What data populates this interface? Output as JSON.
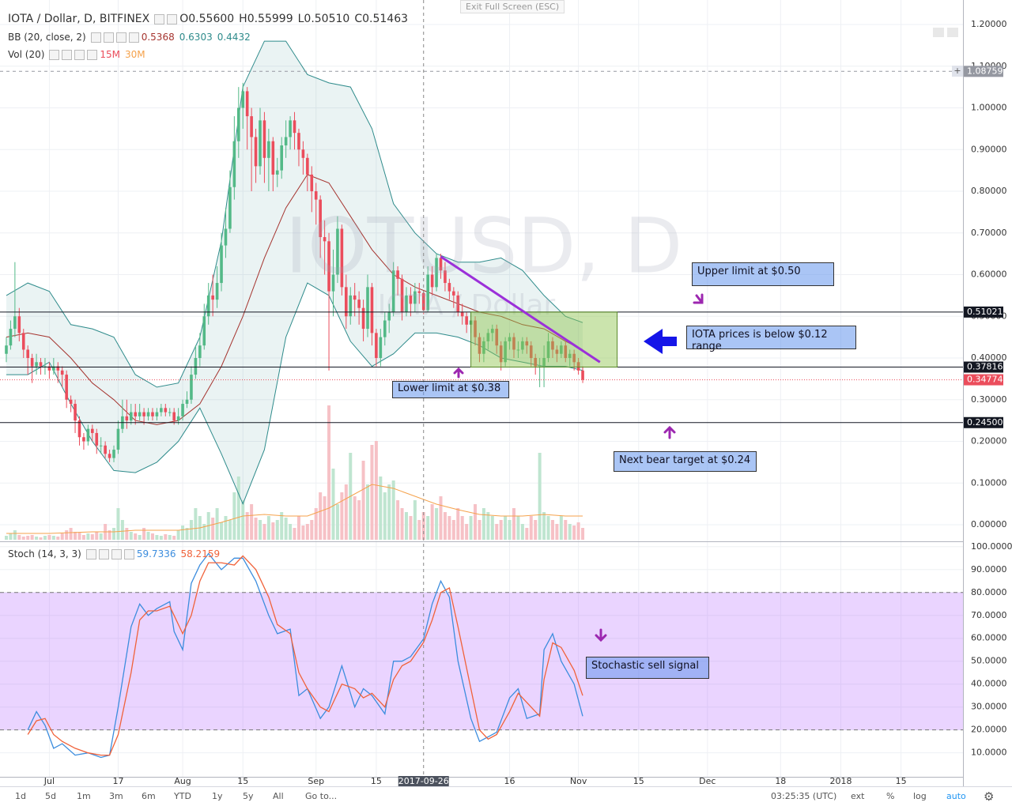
{
  "chart_data": {
    "type": "candlestick",
    "title": "IOTA / Dollar, D, BITFINEX",
    "ohlc_legend": [
      {
        "label": "O",
        "value": "0.55600"
      },
      {
        "label": "H",
        "value": "0.55999"
      },
      {
        "label": "L",
        "value": "0.50510"
      },
      {
        "label": "C",
        "value": "0.51463"
      }
    ],
    "watermark": {
      "symbol": "IOTUSD, D",
      "description": "IOTA / Dollar"
    },
    "up_color": "#53b987",
    "down_color": "#eb4d5c",
    "open": [
      0.41,
      0.43,
      0.47,
      0.5,
      0.46,
      0.42,
      0.4,
      0.38,
      0.39,
      0.38,
      0.38,
      0.37,
      0.38,
      0.37,
      0.36,
      0.3,
      0.29,
      0.25,
      0.21,
      0.2,
      0.23,
      0.22,
      0.19,
      0.19,
      0.17,
      0.16,
      0.18,
      0.23,
      0.26,
      0.25,
      0.27,
      0.26,
      0.27,
      0.26,
      0.27,
      0.26,
      0.27,
      0.28,
      0.27,
      0.27,
      0.25,
      0.26,
      0.29,
      0.3,
      0.36,
      0.4,
      0.43,
      0.5,
      0.55,
      0.54,
      0.58,
      0.67,
      0.71,
      0.81,
      0.92,
      1.0,
      1.04,
      0.98,
      0.93,
      0.86,
      0.97,
      0.88,
      0.92,
      0.84,
      0.85,
      0.91,
      0.93,
      0.97,
      0.94,
      0.9,
      0.88,
      0.84,
      0.8,
      0.78,
      0.69,
      0.68,
      0.56,
      0.6,
      0.71,
      0.57,
      0.5,
      0.55,
      0.54,
      0.52,
      0.47,
      0.57,
      0.46,
      0.4,
      0.45,
      0.49,
      0.51,
      0.61,
      0.59,
      0.51,
      0.55,
      0.53,
      0.56,
      0.556,
      0.51463,
      0.6,
      0.57,
      0.64,
      0.61,
      0.58,
      0.56,
      0.55,
      0.51,
      0.5,
      0.48,
      0.49,
      0.45,
      0.41,
      0.44,
      0.46,
      0.47,
      0.43,
      0.39,
      0.44,
      0.45,
      0.42,
      0.42,
      0.44,
      0.43,
      0.4,
      0.38,
      0.38,
      0.4,
      0.44,
      0.42,
      0.41,
      0.43,
      0.4,
      0.41,
      0.39,
      0.37
    ],
    "high": [
      0.45,
      0.49,
      0.63,
      0.52,
      0.47,
      0.43,
      0.41,
      0.41,
      0.4,
      0.4,
      0.39,
      0.4,
      0.39,
      0.38,
      0.37,
      0.31,
      0.3,
      0.26,
      0.22,
      0.24,
      0.24,
      0.23,
      0.21,
      0.2,
      0.18,
      0.19,
      0.25,
      0.3,
      0.3,
      0.29,
      0.29,
      0.29,
      0.28,
      0.28,
      0.28,
      0.28,
      0.29,
      0.29,
      0.28,
      0.28,
      0.28,
      0.3,
      0.32,
      0.38,
      0.43,
      0.46,
      0.53,
      0.58,
      0.6,
      0.62,
      0.7,
      0.76,
      0.85,
      0.98,
      1.05,
      1.06,
      1.05,
      1.0,
      0.95,
      1.0,
      0.99,
      0.95,
      0.93,
      0.88,
      0.93,
      0.97,
      0.98,
      0.99,
      0.95,
      0.92,
      0.89,
      0.86,
      0.82,
      0.79,
      0.73,
      0.7,
      0.66,
      0.74,
      0.72,
      0.6,
      0.57,
      0.58,
      0.56,
      0.54,
      0.6,
      0.58,
      0.47,
      0.47,
      0.51,
      0.53,
      0.63,
      0.62,
      0.6,
      0.57,
      0.57,
      0.58,
      0.58,
      0.55999,
      0.62,
      0.62,
      0.65,
      0.65,
      0.63,
      0.59,
      0.57,
      0.56,
      0.53,
      0.51,
      0.51,
      0.5,
      0.46,
      0.45,
      0.47,
      0.48,
      0.48,
      0.44,
      0.45,
      0.46,
      0.46,
      0.44,
      0.45,
      0.45,
      0.44,
      0.41,
      0.4,
      0.43,
      0.46,
      0.45,
      0.43,
      0.44,
      0.44,
      0.42,
      0.42,
      0.4,
      0.38
    ],
    "low": [
      0.39,
      0.42,
      0.45,
      0.44,
      0.4,
      0.36,
      0.34,
      0.36,
      0.36,
      0.36,
      0.35,
      0.36,
      0.34,
      0.33,
      0.28,
      0.27,
      0.22,
      0.19,
      0.18,
      0.19,
      0.2,
      0.17,
      0.17,
      0.16,
      0.15,
      0.15,
      0.17,
      0.22,
      0.23,
      0.24,
      0.24,
      0.25,
      0.24,
      0.25,
      0.25,
      0.25,
      0.26,
      0.26,
      0.26,
      0.24,
      0.24,
      0.25,
      0.28,
      0.29,
      0.35,
      0.38,
      0.42,
      0.48,
      0.5,
      0.52,
      0.56,
      0.64,
      0.7,
      0.78,
      0.88,
      0.95,
      0.9,
      0.8,
      0.82,
      0.84,
      0.82,
      0.8,
      0.8,
      0.81,
      0.83,
      0.88,
      0.9,
      0.9,
      0.86,
      0.84,
      0.8,
      0.75,
      0.72,
      0.64,
      0.6,
      0.37,
      0.5,
      0.58,
      0.55,
      0.47,
      0.48,
      0.5,
      0.48,
      0.44,
      0.45,
      0.43,
      0.38,
      0.38,
      0.43,
      0.46,
      0.5,
      0.55,
      0.49,
      0.5,
      0.5,
      0.51,
      0.53,
      0.5051,
      0.51,
      0.55,
      0.56,
      0.59,
      0.56,
      0.54,
      0.52,
      0.5,
      0.48,
      0.46,
      0.46,
      0.43,
      0.39,
      0.39,
      0.42,
      0.44,
      0.41,
      0.37,
      0.38,
      0.42,
      0.4,
      0.4,
      0.41,
      0.41,
      0.38,
      0.36,
      0.33,
      0.33,
      0.39,
      0.4,
      0.39,
      0.4,
      0.39,
      0.38,
      0.37,
      0.36,
      0.34
    ],
    "close": [
      0.43,
      0.47,
      0.5,
      0.46,
      0.42,
      0.4,
      0.38,
      0.39,
      0.38,
      0.38,
      0.37,
      0.38,
      0.37,
      0.36,
      0.3,
      0.29,
      0.25,
      0.21,
      0.2,
      0.23,
      0.22,
      0.19,
      0.19,
      0.17,
      0.16,
      0.18,
      0.23,
      0.26,
      0.25,
      0.27,
      0.26,
      0.27,
      0.26,
      0.27,
      0.26,
      0.27,
      0.28,
      0.27,
      0.27,
      0.25,
      0.26,
      0.29,
      0.3,
      0.36,
      0.4,
      0.43,
      0.5,
      0.55,
      0.54,
      0.58,
      0.67,
      0.71,
      0.81,
      0.92,
      1.0,
      1.04,
      0.98,
      0.93,
      0.86,
      0.97,
      0.88,
      0.92,
      0.84,
      0.85,
      0.91,
      0.93,
      0.97,
      0.94,
      0.9,
      0.88,
      0.84,
      0.8,
      0.78,
      0.69,
      0.68,
      0.56,
      0.6,
      0.71,
      0.57,
      0.5,
      0.55,
      0.54,
      0.52,
      0.47,
      0.57,
      0.46,
      0.4,
      0.45,
      0.49,
      0.51,
      0.61,
      0.59,
      0.51,
      0.55,
      0.53,
      0.56,
      0.556,
      0.51463,
      0.6,
      0.57,
      0.64,
      0.61,
      0.58,
      0.56,
      0.55,
      0.51,
      0.5,
      0.48,
      0.49,
      0.45,
      0.41,
      0.44,
      0.46,
      0.47,
      0.43,
      0.39,
      0.44,
      0.45,
      0.42,
      0.42,
      0.44,
      0.43,
      0.4,
      0.38,
      0.38,
      0.4,
      0.44,
      0.42,
      0.41,
      0.43,
      0.4,
      0.41,
      0.39,
      0.37,
      0.34774
    ],
    "xlim": [
      -1.47,
      222.4
    ],
    "xticks": [
      {
        "value": 10,
        "label": "Jul"
      },
      {
        "value": 26,
        "label": "17"
      },
      {
        "value": 41,
        "label": "Aug"
      },
      {
        "value": 55,
        "label": "15"
      },
      {
        "value": 72,
        "label": "Sep"
      },
      {
        "value": 86,
        "label": "15"
      },
      {
        "value": 117,
        "label": "16"
      },
      {
        "value": 133,
        "label": "Nov"
      },
      {
        "value": 147,
        "label": "15"
      },
      {
        "value": 163,
        "label": "Dec"
      },
      {
        "value": 180,
        "label": "18"
      },
      {
        "value": 194,
        "label": "2018"
      },
      {
        "value": 208,
        "label": "15"
      }
    ],
    "crosshair": {
      "value": 97,
      "label": "2017-09-26"
    },
    "ylim": [
      -0.0398,
      1.2588
    ],
    "yticks": [
      {
        "value": 0,
        "label": "0.00000"
      },
      {
        "value": 0.1,
        "label": "0.10000"
      },
      {
        "value": 0.2,
        "label": "0.20000"
      },
      {
        "value": 0.3,
        "label": "0.30000"
      },
      {
        "value": 0.4,
        "label": "0.40000"
      },
      {
        "value": 0.5,
        "label": "0.50000"
      },
      {
        "value": 0.6,
        "label": "0.60000"
      },
      {
        "value": 0.7,
        "label": "0.70000"
      },
      {
        "value": 0.8,
        "label": "0.80000"
      },
      {
        "value": 0.9,
        "label": "0.90000"
      },
      {
        "value": 1.0,
        "label": "1.00000"
      },
      {
        "value": 1.1,
        "label": "1.10000"
      },
      {
        "value": 1.2,
        "label": "1.20000"
      }
    ],
    "grid": true,
    "price_lines": [
      {
        "value": 1.08759,
        "label": "1.08759",
        "color": "#9598a1"
      },
      {
        "value": 0.51021,
        "label": "0.51021",
        "color": "#131722"
      },
      {
        "value": 0.37816,
        "label": "0.37816",
        "color": "#131722"
      },
      {
        "value": 0.34774,
        "label": "0.34774",
        "color": "#eb4d5c"
      },
      {
        "value": 0.245,
        "label": "0.24500",
        "color": "#131722"
      }
    ],
    "box": {
      "x": [
        108,
        142
      ],
      "color": "#8bc34a"
    },
    "trend_line": {
      "x": [
        101,
        138
      ],
      "values": [
        0.643,
        0.39
      ],
      "color": "#9b30d9"
    },
    "bollinger": {
      "name": "BB (20, close, 2)",
      "legend_values": [
        "0.5368",
        "0.6303",
        "0.4432"
      ],
      "x": [
        0,
        5,
        10,
        15,
        20,
        25,
        30,
        35,
        40,
        45,
        50,
        55,
        60,
        65,
        70,
        75,
        80,
        85,
        90,
        95,
        100,
        105,
        110,
        115,
        120,
        125,
        130,
        134
      ],
      "lines": [
        {
          "color": "#a5342f",
          "values": [
            0.45,
            0.46,
            0.45,
            0.4,
            0.34,
            0.3,
            0.25,
            0.24,
            0.25,
            0.29,
            0.38,
            0.5,
            0.64,
            0.76,
            0.84,
            0.82,
            0.74,
            0.66,
            0.6,
            0.57,
            0.55,
            0.53,
            0.51,
            0.5,
            0.48,
            0.47,
            0.44,
            0.42
          ]
        },
        {
          "color": "#2e8b8b",
          "values": [
            0.55,
            0.58,
            0.56,
            0.48,
            0.47,
            0.45,
            0.36,
            0.33,
            0.34,
            0.45,
            0.68,
            1.05,
            1.16,
            1.16,
            1.08,
            1.06,
            1.05,
            0.95,
            0.77,
            0.7,
            0.65,
            0.63,
            0.63,
            0.64,
            0.61,
            0.55,
            0.5,
            0.485
          ]
        },
        {
          "color": "#2e8b8b",
          "values": [
            0.36,
            0.36,
            0.39,
            0.29,
            0.2,
            0.13,
            0.125,
            0.15,
            0.2,
            0.28,
            0.17,
            0.05,
            0.18,
            0.45,
            0.58,
            0.55,
            0.44,
            0.38,
            0.41,
            0.46,
            0.46,
            0.45,
            0.43,
            0.4,
            0.39,
            0.38,
            0.38,
            0.37
          ]
        }
      ],
      "fill": "rgba(46,139,139,0.10)"
    },
    "volume": {
      "name": "Vol (20)",
      "legend_values": [
        "15M",
        "30M"
      ],
      "ylim": [
        0,
        170
      ],
      "values": [
        5,
        8,
        12,
        6,
        4,
        5,
        6,
        4,
        3,
        5,
        6,
        5,
        4,
        8,
        12,
        15,
        10,
        9,
        6,
        8,
        7,
        10,
        8,
        20,
        12,
        15,
        40,
        25,
        15,
        10,
        8,
        6,
        15,
        10,
        8,
        6,
        5,
        7,
        6,
        5,
        12,
        18,
        15,
        25,
        40,
        30,
        20,
        35,
        28,
        40,
        22,
        30,
        25,
        60,
        80,
        50,
        35,
        45,
        28,
        25,
        20,
        30,
        22,
        25,
        35,
        28,
        20,
        15,
        30,
        18,
        20,
        25,
        40,
        60,
        55,
        170,
        90,
        45,
        60,
        70,
        110,
        55,
        50,
        100,
        70,
        120,
        125,
        80,
        60,
        70,
        75,
        50,
        40,
        35,
        30,
        50,
        25,
        35,
        30,
        45,
        40,
        55,
        35,
        30,
        25,
        40,
        30,
        20,
        30,
        45,
        25,
        40,
        35,
        30,
        20,
        25,
        30,
        25,
        40,
        30,
        20,
        15,
        30,
        25,
        110,
        35,
        30,
        25,
        20,
        30,
        25,
        20,
        18,
        22,
        15
      ],
      "up_color": "#bfe5d0",
      "down_color": "#f6c1c6",
      "ma": {
        "color": "#f5a24b",
        "x": [
          0,
          5,
          10,
          15,
          20,
          25,
          30,
          35,
          40,
          45,
          50,
          55,
          60,
          65,
          70,
          75,
          80,
          85,
          90,
          95,
          100,
          105,
          110,
          115,
          120,
          125,
          130,
          134
        ],
        "values": [
          8,
          8,
          8,
          9,
          10,
          10,
          12,
          12,
          12,
          15,
          22,
          30,
          32,
          30,
          30,
          40,
          55,
          70,
          65,
          55,
          45,
          38,
          32,
          30,
          30,
          32,
          30,
          30
        ]
      }
    },
    "stoch": {
      "name": "Stoch (14, 3, 3)",
      "legend_values": [
        "59.7336",
        "58.2159"
      ],
      "ylim": [
        -1.5,
        102
      ],
      "yticks": [
        {
          "value": 10,
          "label": "10.0000"
        },
        {
          "value": 20,
          "label": "20.0000"
        },
        {
          "value": 30,
          "label": "30.0000"
        },
        {
          "value": 40,
          "label": "40.0000"
        },
        {
          "value": 50,
          "label": "50.0000"
        },
        {
          "value": 60,
          "label": "60.0000"
        },
        {
          "value": 70,
          "label": "70.0000"
        },
        {
          "value": 80,
          "label": "80.0000"
        },
        {
          "value": 90,
          "label": "90.0000"
        },
        {
          "value": 100,
          "label": "100.0000"
        }
      ],
      "bands": [
        20,
        80
      ],
      "band_color": "rgba(178,102,255,0.28)",
      "x": [
        5,
        7,
        9,
        11,
        13,
        16,
        19,
        22,
        24,
        26,
        29,
        31,
        33,
        35,
        38,
        39,
        41,
        43,
        45,
        47,
        50,
        53,
        55,
        58,
        61,
        63,
        66,
        68,
        70,
        73,
        75,
        78,
        81,
        83,
        85,
        88,
        90,
        92,
        94,
        97,
        99,
        101,
        103,
        105,
        108,
        110,
        112,
        114,
        117,
        119,
        121,
        124,
        125,
        127,
        129,
        132,
        134
      ],
      "series": [
        {
          "color": "#3c8dde",
          "values": [
            20,
            28,
            22,
            12,
            14,
            9,
            10,
            8,
            9,
            30,
            65,
            75,
            70,
            73,
            76,
            63,
            55,
            84,
            92,
            97,
            90,
            95,
            95,
            85,
            70,
            62,
            64,
            35,
            38,
            25,
            30,
            48,
            30,
            38,
            35,
            27,
            50,
            50,
            52,
            59.7336,
            75,
            85,
            78,
            50,
            25,
            15,
            17,
            19,
            34,
            38,
            25,
            27,
            55,
            62,
            50,
            40,
            26
          ]
        },
        {
          "color": "#f0623a",
          "values": [
            18,
            24,
            25,
            18,
            15,
            12,
            10,
            9,
            9,
            18,
            45,
            68,
            72,
            72,
            74,
            70,
            62,
            70,
            85,
            93,
            93,
            92,
            96,
            90,
            78,
            66,
            62,
            45,
            38,
            30,
            28,
            40,
            38,
            34,
            36,
            30,
            42,
            48,
            50,
            58.2159,
            68,
            80,
            82,
            65,
            38,
            20,
            16,
            18,
            28,
            36,
            32,
            26,
            42,
            58,
            56,
            46,
            35
          ]
        }
      ]
    },
    "notes": [
      "Upper limit at $0.50",
      "IOTA prices is below $0.12 range",
      "Lower limit at $0.38",
      "Next bear target at $0.24",
      "Stochastic sell signal"
    ]
  },
  "toolbar": {
    "intervals": [
      "1d",
      "5d",
      "1m",
      "3m",
      "6m",
      "YTD",
      "1y",
      "5y",
      "All"
    ],
    "goto": "Go to...",
    "clock": "03:25:35 (UTC)",
    "options": [
      "ext",
      "%",
      "log",
      "auto"
    ]
  },
  "exit_full_screen": "Exit Full Screen (ESC)"
}
